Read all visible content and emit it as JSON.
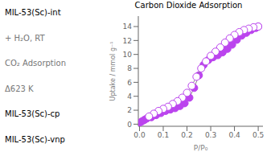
{
  "chart_data": {
    "type": "line",
    "title": "Carbon Dioxide Adsorption",
    "x_label": "P/P₀",
    "y_label": "Uptake / mmol g⁻¹",
    "series": [
      {
        "color": "#bb44ee",
        "marker": "circle",
        "x": [
          0.0,
          0.01,
          0.02,
          0.03,
          0.05,
          0.07,
          0.09,
          0.11,
          0.13,
          0.15,
          0.17,
          0.19,
          0.21,
          0.23,
          0.25,
          0.27,
          0.29,
          0.31,
          0.33,
          0.35,
          0.37,
          0.39,
          0.41,
          0.43,
          0.45,
          0.47,
          0.49,
          0.5
        ],
        "values": [
          0.2,
          0.4,
          0.6,
          0.8,
          1.0,
          1.3,
          1.6,
          1.9,
          2.1,
          2.3,
          2.6,
          3.0,
          3.8,
          5.2,
          7.0,
          8.5,
          9.2,
          9.6,
          9.9,
          10.3,
          10.8,
          11.4,
          12.1,
          12.7,
          13.1,
          13.5,
          13.8,
          14.0
        ]
      },
      {
        "color": "#bb44ee",
        "marker": "hollow_circle",
        "x": [
          0.5,
          0.48,
          0.46,
          0.44,
          0.42,
          0.4,
          0.38,
          0.36,
          0.34,
          0.32,
          0.3,
          0.28,
          0.26,
          0.24,
          0.22,
          0.2,
          0.18,
          0.16,
          0.14,
          0.12,
          0.1,
          0.08,
          0.06,
          0.04
        ],
        "values": [
          14.0,
          13.9,
          13.7,
          13.5,
          13.2,
          12.8,
          12.3,
          11.7,
          11.0,
          10.4,
          9.8,
          9.0,
          8.0,
          6.8,
          5.5,
          4.5,
          3.8,
          3.3,
          2.9,
          2.5,
          2.2,
          1.9,
          1.5,
          1.1
        ]
      }
    ],
    "xlim": [
      -0.005,
      0.52
    ],
    "ylim": [
      -0.3,
      15.5
    ],
    "xticks": [
      {
        "value": 0.0,
        "label": "0.0"
      },
      0.1,
      0.2,
      0.3,
      0.4,
      0.5
    ],
    "yticks": [
      0,
      2,
      4,
      6,
      8,
      10,
      12,
      14
    ],
    "grid": false,
    "annotations": [
      {
        "text": "MIL-53(Sc)-int"
      },
      {
        "text": "+ H₂O, RT",
        "color": "#777777"
      },
      {
        "text": "CO₂ Adsorption",
        "color": "#777777"
      },
      {
        "text": "Δ623 K",
        "color": "#777777"
      },
      {
        "text": "MIL-53(Sc)-cp"
      },
      {
        "text": "MIL-53(Sc)-vnp"
      }
    ]
  }
}
